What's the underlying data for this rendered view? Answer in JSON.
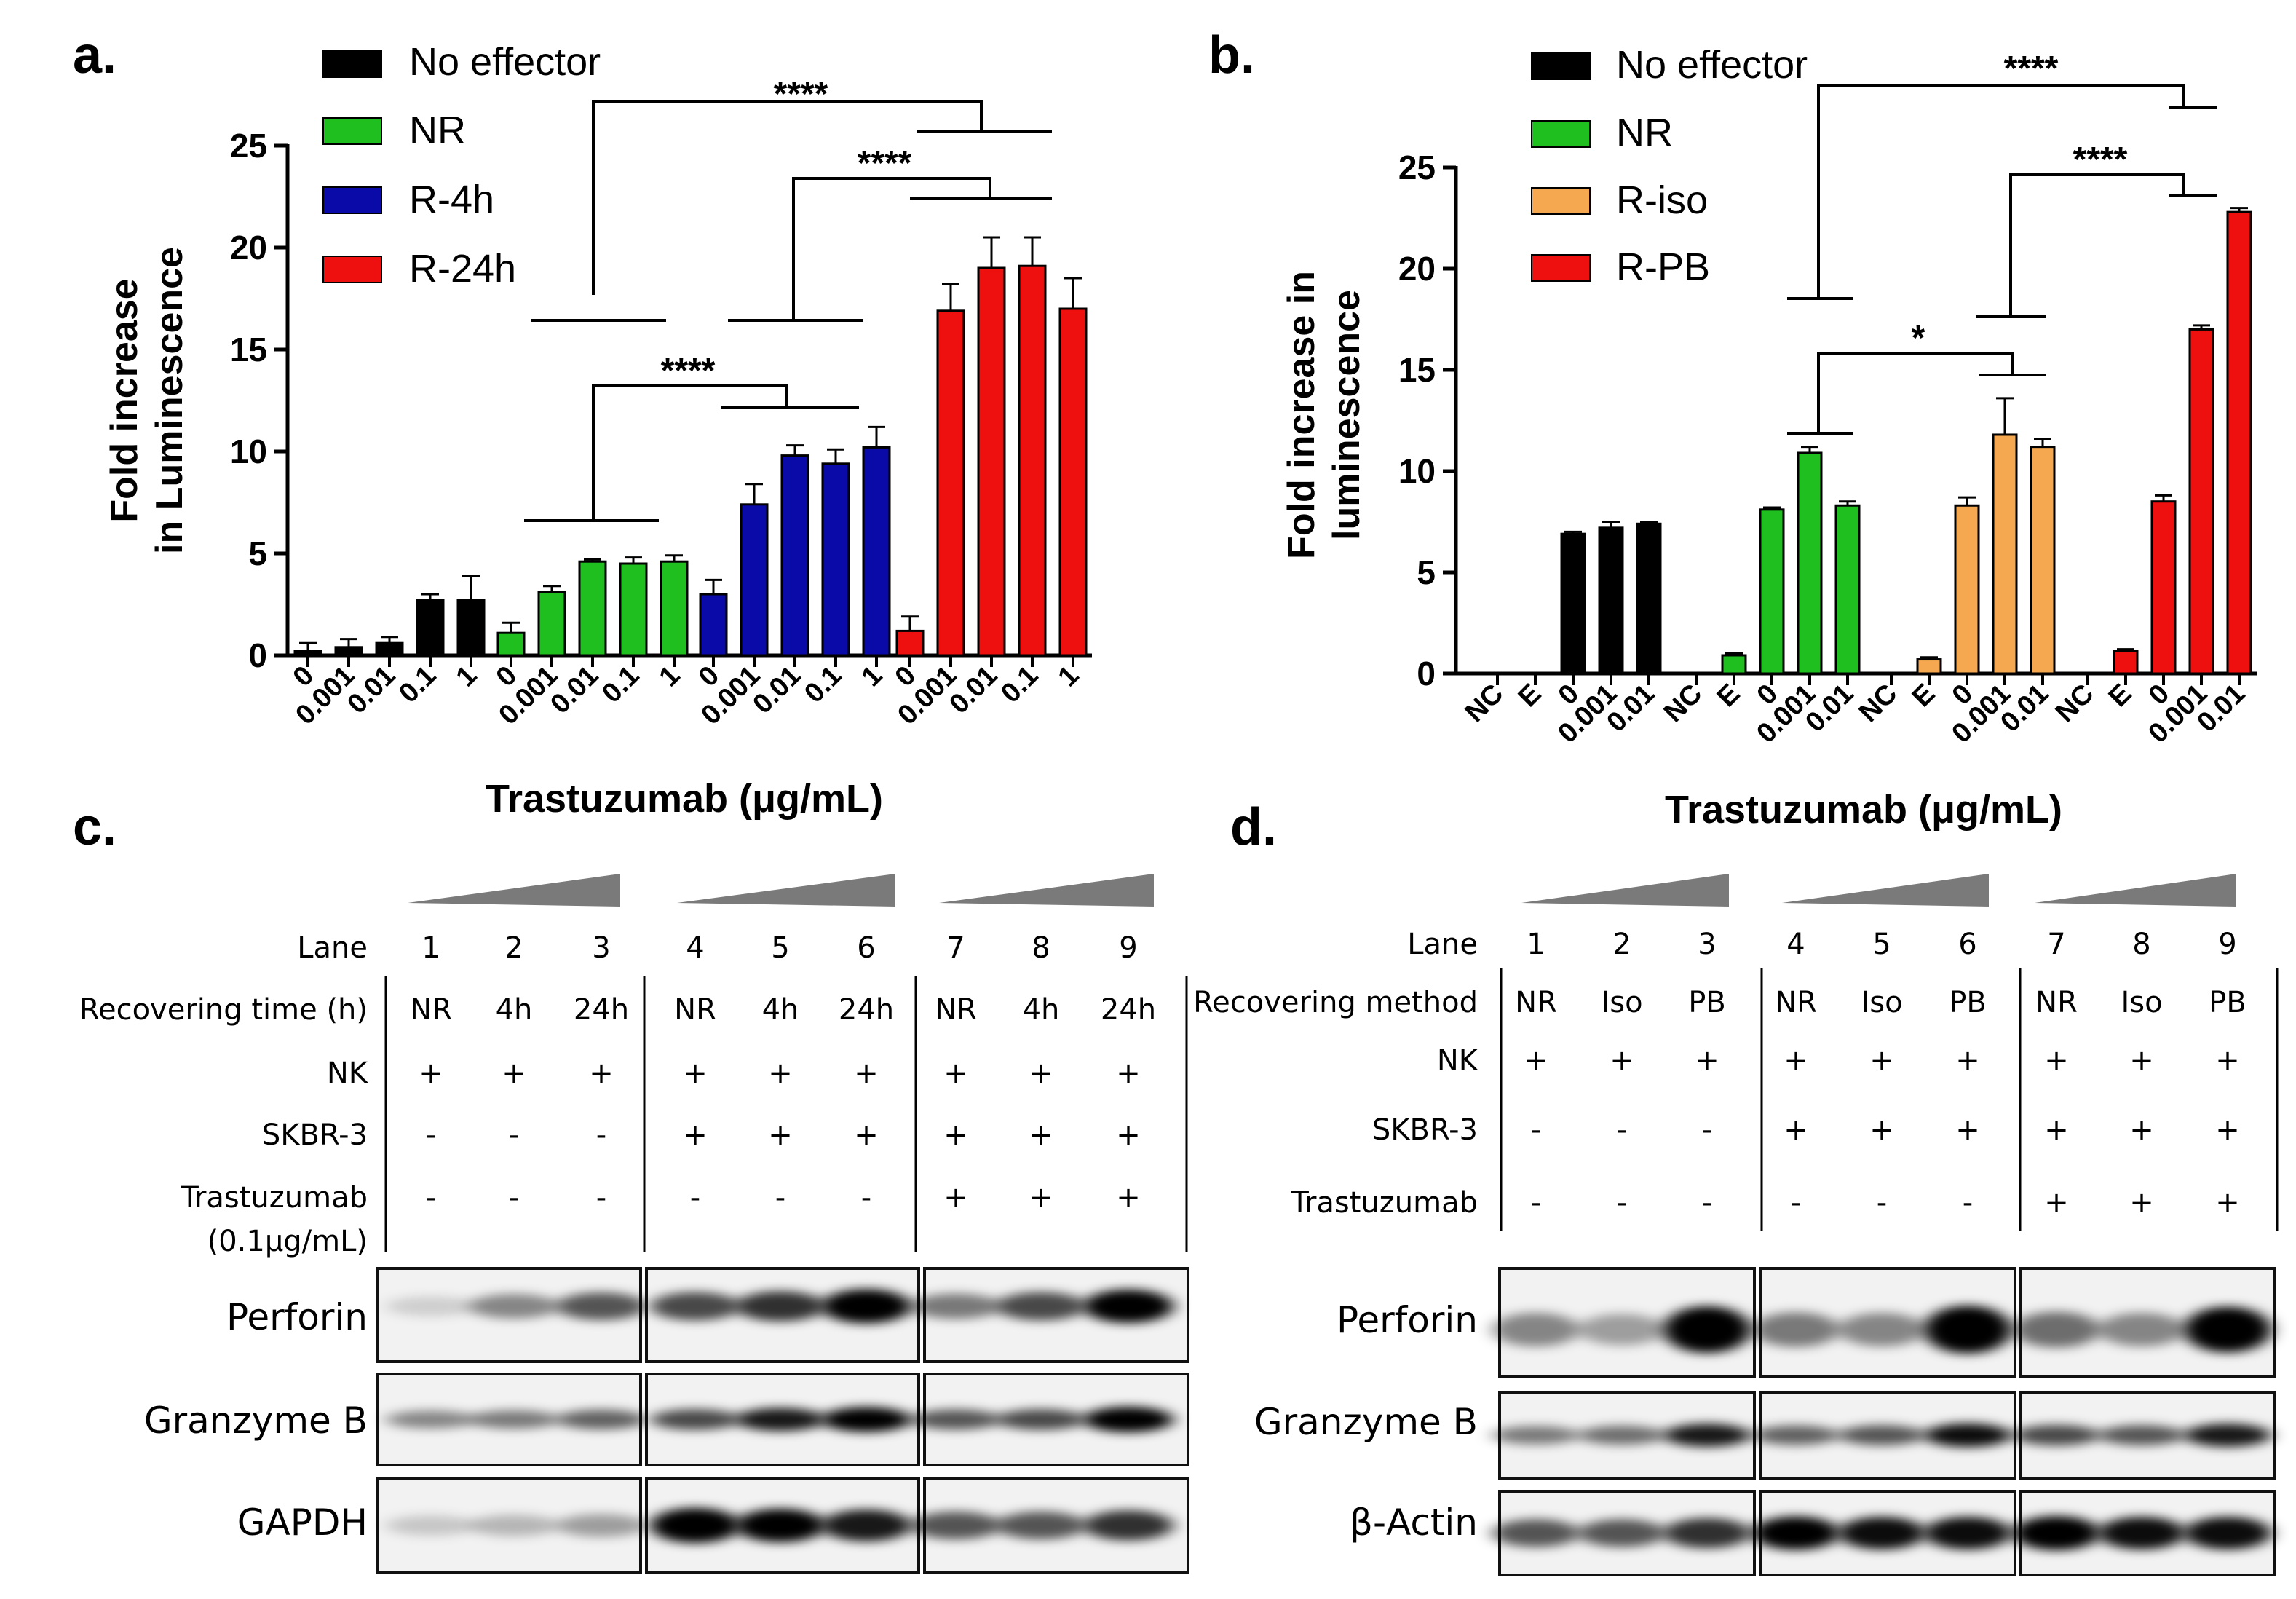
{
  "panels": {
    "a": "a.",
    "b": "b.",
    "c": "c.",
    "d": "d."
  },
  "chart_data": [
    {
      "id": "a",
      "type": "bar",
      "ylabel_lines": [
        "Fold increase",
        "in Luminescence"
      ],
      "xlabel": "Trastuzumab (μg/mL)",
      "ylim": [
        0,
        25
      ],
      "yticks": [
        "0",
        "5",
        "10",
        "15",
        "20",
        "25"
      ],
      "legend": [
        "No effector",
        "NR",
        "R-4h",
        "R-24h"
      ],
      "colors": [
        "#000000",
        "#1fbf1f",
        "#0a0aa8",
        "#ee0f0f"
      ],
      "series": [
        {
          "name": "No effector",
          "categories": [
            "0",
            "0.001",
            "0.01",
            "0.1",
            "1"
          ],
          "values": [
            0.2,
            0.4,
            0.6,
            2.7,
            2.7
          ],
          "errors": [
            0.4,
            0.4,
            0.3,
            0.3,
            1.2
          ]
        },
        {
          "name": "NR",
          "categories": [
            "0",
            "0.001",
            "0.01",
            "0.1",
            "1"
          ],
          "values": [
            1.1,
            3.1,
            4.6,
            4.5,
            4.6
          ],
          "errors": [
            0.5,
            0.3,
            0.1,
            0.3,
            0.3
          ]
        },
        {
          "name": "R-4h",
          "categories": [
            "0",
            "0.001",
            "0.01",
            "0.1",
            "1"
          ],
          "values": [
            3.0,
            7.4,
            9.8,
            9.4,
            10.2
          ],
          "errors": [
            0.7,
            1.0,
            0.5,
            0.7,
            1.0
          ]
        },
        {
          "name": "R-24h",
          "categories": [
            "0",
            "0.001",
            "0.01",
            "0.1",
            "1"
          ],
          "values": [
            1.2,
            16.9,
            19.0,
            19.1,
            17.0
          ],
          "errors": [
            0.7,
            1.3,
            1.5,
            1.4,
            1.5
          ]
        }
      ],
      "annotations": [
        "****",
        "****",
        "****"
      ]
    },
    {
      "id": "b",
      "type": "bar",
      "ylabel_lines": [
        "Fold increase in",
        "luminescence"
      ],
      "xlabel": "Trastuzumab (μg/mL)",
      "ylim": [
        0,
        25
      ],
      "yticks": [
        "0",
        "5",
        "10",
        "15",
        "20",
        "25"
      ],
      "legend": [
        "No effector",
        "NR",
        "R-iso",
        "R-PB"
      ],
      "colors": [
        "#000000",
        "#1fbf1f",
        "#f6a850",
        "#ee0f0f"
      ],
      "series": [
        {
          "name": "No effector",
          "categories": [
            "NC",
            "E",
            "0",
            "0.001",
            "0.01"
          ],
          "values": [
            0,
            0,
            6.9,
            7.2,
            7.4
          ],
          "errors": [
            0,
            0,
            0.1,
            0.3,
            0.1
          ]
        },
        {
          "name": "NR",
          "categories": [
            "NC",
            "E",
            "0",
            "0.001",
            "0.01"
          ],
          "values": [
            0,
            0.9,
            8.1,
            10.9,
            8.3
          ],
          "errors": [
            0,
            0.1,
            0.1,
            0.3,
            0.2
          ]
        },
        {
          "name": "R-iso",
          "categories": [
            "NC",
            "E",
            "0",
            "0.001",
            "0.01"
          ],
          "values": [
            0,
            0.7,
            8.3,
            11.8,
            11.2
          ],
          "errors": [
            0,
            0.1,
            0.4,
            1.8,
            0.4
          ]
        },
        {
          "name": "R-PB",
          "categories": [
            "NC",
            "E",
            "0",
            "0.001",
            "0.01"
          ],
          "values": [
            0,
            1.1,
            8.5,
            17.0,
            22.8
          ],
          "errors": [
            0,
            0.1,
            0.3,
            0.2,
            0.2
          ]
        }
      ],
      "annotations": [
        "****",
        "****",
        "*"
      ]
    }
  ],
  "blot_c": {
    "lane_label": "Lane",
    "lanes": [
      "1",
      "2",
      "3",
      "4",
      "5",
      "6",
      "7",
      "8",
      "9"
    ],
    "row_labels": {
      "recover": "Recovering time (h)",
      "nk": "NK",
      "skbr": "SKBR-3",
      "tras1": "Trastuzumab",
      "tras2": "(0.1μg/mL)"
    },
    "recover": [
      "NR",
      "4h",
      "24h",
      "NR",
      "4h",
      "24h",
      "NR",
      "4h",
      "24h"
    ],
    "nk": [
      "+",
      "+",
      "+",
      "+",
      "+",
      "+",
      "+",
      "+",
      "+"
    ],
    "skbr": [
      "-",
      "-",
      "-",
      "+",
      "+",
      "+",
      "+",
      "+",
      "+"
    ],
    "tras": [
      "-",
      "-",
      "-",
      "-",
      "-",
      "-",
      "+",
      "+",
      "+"
    ],
    "bands": [
      "Perforin",
      "Granzyme B",
      "GAPDH"
    ]
  },
  "blot_d": {
    "lane_label": "Lane",
    "lanes": [
      "1",
      "2",
      "3",
      "4",
      "5",
      "6",
      "7",
      "8",
      "9"
    ],
    "row_labels": {
      "recover": "Recovering method",
      "nk": "NK",
      "skbr": "SKBR-3",
      "tras1": "Trastuzumab"
    },
    "recover": [
      "NR",
      "Iso",
      "PB",
      "NR",
      "Iso",
      "PB",
      "NR",
      "Iso",
      "PB"
    ],
    "nk": [
      "+",
      "+",
      "+",
      "+",
      "+",
      "+",
      "+",
      "+",
      "+"
    ],
    "skbr": [
      "-",
      "-",
      "-",
      "+",
      "+",
      "+",
      "+",
      "+",
      "+"
    ],
    "tras": [
      "-",
      "-",
      "-",
      "-",
      "-",
      "-",
      "+",
      "+",
      "+"
    ],
    "bands": [
      "Perforin",
      "Granzyme B",
      "β-Actin"
    ]
  }
}
